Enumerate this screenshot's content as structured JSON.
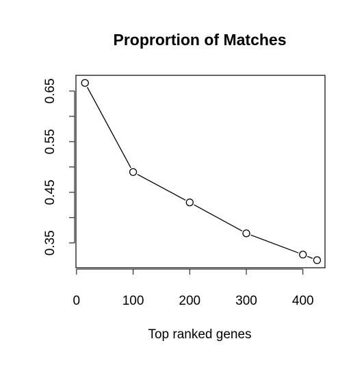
{
  "chart_data": {
    "type": "line",
    "title": "Proprortion of Matches",
    "x_label": "Top ranked genes",
    "x": [
      15,
      100,
      200,
      300,
      400,
      425
    ],
    "values": [
      0.666,
      0.49,
      0.43,
      0.369,
      0.327,
      0.316
    ],
    "color": "#000000",
    "xlim": [
      -1,
      439
    ],
    "xticks": [
      0,
      100,
      200,
      300,
      400
    ],
    "ylim": [
      0.301,
      0.681
    ],
    "yticks": [
      0.35,
      0.45,
      0.55,
      0.65
    ],
    "yminor_ticks": [
      0.4,
      0.5,
      0.6
    ]
  }
}
